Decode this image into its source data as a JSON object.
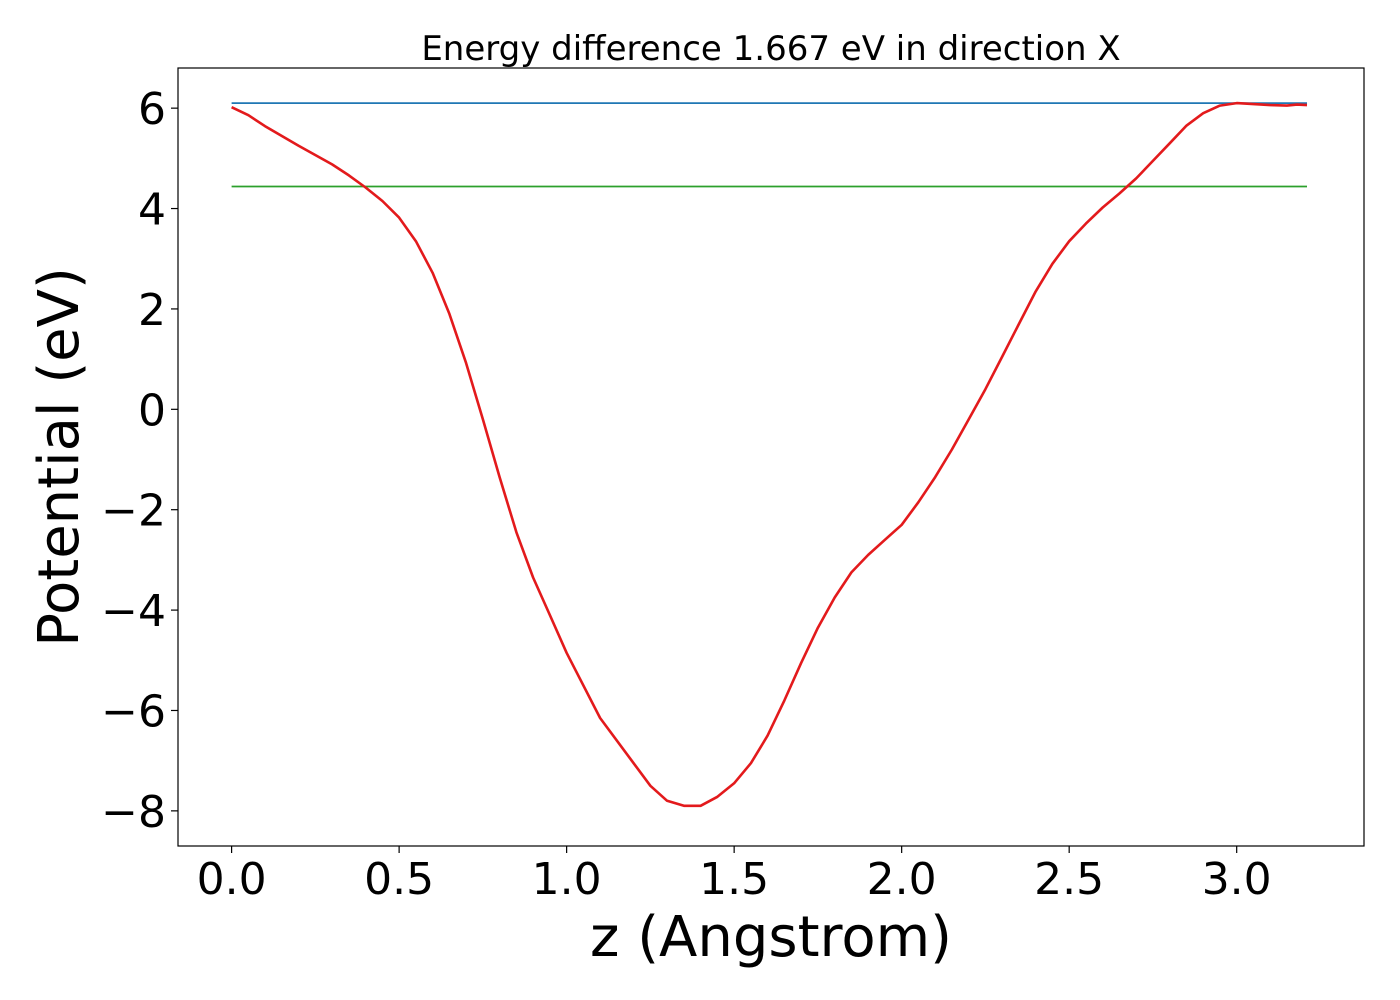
{
  "chart_data": {
    "type": "line",
    "title": "Energy difference 1.667 eV in direction X",
    "xlabel": "z (Angstrom)",
    "ylabel": "Potential (eV)",
    "xlim": [
      -0.16,
      3.38
    ],
    "ylim": [
      -8.7,
      6.8
    ],
    "xticks": [
      0.0,
      0.5,
      1.0,
      1.5,
      2.0,
      2.5,
      3.0
    ],
    "xtick_labels": [
      "0.0",
      "0.5",
      "1.0",
      "1.5",
      "2.0",
      "2.5",
      "3.0"
    ],
    "yticks": [
      6,
      4,
      2,
      0,
      -2,
      -4,
      -6,
      -8
    ],
    "ytick_labels": [
      "6",
      "4",
      "2",
      "0",
      "−2",
      "−4",
      "−6",
      "−8"
    ],
    "grid": false,
    "series": [
      {
        "color": "#1f77b4",
        "x": [
          0.0,
          3.21
        ],
        "y": [
          6.1,
          6.1
        ]
      },
      {
        "color": "#2ca02c",
        "x": [
          0.0,
          3.21
        ],
        "y": [
          4.44,
          4.44
        ]
      },
      {
        "color": "#e31a1c",
        "x": [
          0.0,
          0.05,
          0.1,
          0.2,
          0.3,
          0.35,
          0.4,
          0.45,
          0.5,
          0.55,
          0.6,
          0.65,
          0.7,
          0.75,
          0.8,
          0.85,
          0.9,
          0.95,
          1.0,
          1.1,
          1.2,
          1.25,
          1.3,
          1.35,
          1.4,
          1.45,
          1.5,
          1.55,
          1.6,
          1.65,
          1.7,
          1.75,
          1.8,
          1.85,
          1.9,
          1.95,
          2.0,
          2.05,
          2.1,
          2.15,
          2.2,
          2.25,
          2.3,
          2.35,
          2.4,
          2.45,
          2.5,
          2.55,
          2.6,
          2.65,
          2.7,
          2.75,
          2.8,
          2.85,
          2.9,
          2.95,
          3.0,
          3.05,
          3.1,
          3.15,
          3.18,
          3.21
        ],
        "y": [
          6.02,
          5.86,
          5.64,
          5.25,
          4.88,
          4.66,
          4.42,
          4.15,
          3.82,
          3.35,
          2.72,
          1.9,
          0.92,
          -0.2,
          -1.35,
          -2.45,
          -3.35,
          -4.1,
          -4.85,
          -6.15,
          -7.05,
          -7.5,
          -7.8,
          -7.9,
          -7.9,
          -7.72,
          -7.45,
          -7.05,
          -6.5,
          -5.8,
          -5.05,
          -4.35,
          -3.75,
          -3.25,
          -2.9,
          -2.6,
          -2.3,
          -1.85,
          -1.35,
          -0.8,
          -0.2,
          0.4,
          1.05,
          1.7,
          2.35,
          2.9,
          3.35,
          3.7,
          4.02,
          4.3,
          4.6,
          4.95,
          5.3,
          5.65,
          5.9,
          6.05,
          6.1,
          6.08,
          6.06,
          6.05,
          6.07,
          6.06
        ]
      }
    ]
  }
}
